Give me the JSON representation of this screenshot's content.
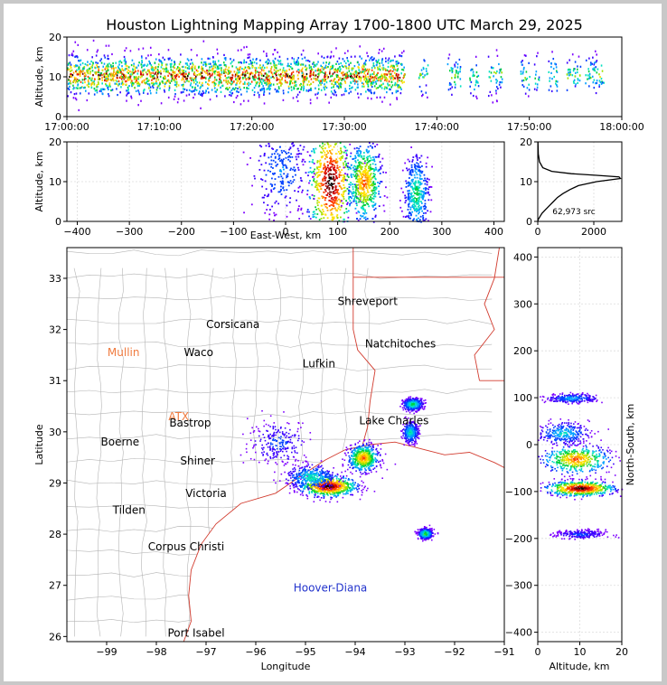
{
  "title": "Houston Lightning Mapping Array 1700-1800 UTC March 29, 2025",
  "colors": {
    "border_state": "#d23c2f",
    "county": "#b4b4b4",
    "coast": "#d23c2f",
    "hot_low": "#7d00ff",
    "hot_high": "#000000"
  },
  "chart_data": [
    {
      "id": "time_height",
      "type": "heatmap",
      "ylabel": "Altitude, km",
      "ylim": [
        0,
        20
      ],
      "yticks": [
        "0",
        "10",
        "20"
      ],
      "xticks": [
        "17:00:00",
        "17:10:00",
        "17:20:00",
        "17:30:00",
        "17:40:00",
        "17:50:00",
        "18:00:00"
      ],
      "xlim_minutes": [
        0,
        60
      ],
      "activity_blocks_minutes": [
        [
          0,
          36.5
        ],
        [
          38,
          39
        ],
        [
          41,
          42.5
        ],
        [
          43.5,
          44.5
        ],
        [
          45.5,
          47
        ],
        [
          49,
          50
        ],
        [
          50.5,
          51
        ],
        [
          52,
          53
        ],
        [
          54,
          55.5
        ],
        [
          56,
          58
        ]
      ],
      "core_altitude_km": 10.5
    },
    {
      "id": "east_west",
      "type": "heatmap",
      "xlabel": "East-West, km",
      "ylabel": "Altitude, km",
      "xlim": [
        -420,
        420
      ],
      "ylim": [
        0,
        20
      ],
      "xticks": [
        "−400",
        "−300",
        "−200",
        "−100",
        "0",
        "100",
        "200",
        "300",
        "400"
      ],
      "yticks": [
        "0",
        "10",
        "20"
      ],
      "clusters": [
        {
          "x": 85,
          "z": 10,
          "sx": 22,
          "sz": 8,
          "peak": 1.0
        },
        {
          "x": 150,
          "z": 10,
          "sx": 16,
          "sz": 5,
          "peak": 0.75
        },
        {
          "x": 250,
          "z": 7,
          "sx": 12,
          "sz": 5,
          "peak": 0.45
        },
        {
          "x": -10,
          "z": 13,
          "sx": 30,
          "sz": 6,
          "peak": 0.25
        }
      ]
    },
    {
      "id": "altitude_histogram",
      "type": "line",
      "xlim": [
        0,
        3000
      ],
      "ylim": [
        0,
        20
      ],
      "xticks": [
        "0",
        "2000"
      ],
      "yticks": [
        "0",
        "10",
        "20"
      ],
      "annotation": "62,973 src",
      "profile": [
        [
          0,
          0
        ],
        [
          20,
          0.5
        ],
        [
          60,
          1
        ],
        [
          150,
          2
        ],
        [
          280,
          3
        ],
        [
          420,
          4
        ],
        [
          560,
          5
        ],
        [
          700,
          6
        ],
        [
          900,
          7
        ],
        [
          1150,
          8
        ],
        [
          1450,
          9
        ],
        [
          2100,
          10
        ],
        [
          2950,
          10.8
        ],
        [
          2900,
          11.2
        ],
        [
          2100,
          11.6
        ],
        [
          1200,
          12
        ],
        [
          500,
          12.6
        ],
        [
          180,
          13.5
        ],
        [
          60,
          15
        ],
        [
          20,
          17
        ],
        [
          5,
          20
        ]
      ]
    },
    {
      "id": "plan_view",
      "type": "heatmap",
      "xlabel": "Longitude",
      "ylabel": "Latitude",
      "xlim": [
        -99.8,
        -91
      ],
      "ylim": [
        25.9,
        33.6
      ],
      "xticks": [
        "−99",
        "−98",
        "−97",
        "−96",
        "−95",
        "−94",
        "−93",
        "−92",
        "−91"
      ],
      "yticks": [
        "26",
        "27",
        "28",
        "29",
        "30",
        "31",
        "32",
        "33"
      ],
      "cities": [
        {
          "name": "Shreveport",
          "lon": -93.75,
          "lat": 32.55,
          "color": "#000000"
        },
        {
          "name": "Corsicana",
          "lon": -96.46,
          "lat": 32.1,
          "color": "#000000"
        },
        {
          "name": "Natchitoches",
          "lon": -93.09,
          "lat": 31.72,
          "color": "#000000"
        },
        {
          "name": "Mullin",
          "lon": -98.66,
          "lat": 31.55,
          "color": "#f07b3f"
        },
        {
          "name": "Waco",
          "lon": -97.15,
          "lat": 31.55,
          "color": "#000000"
        },
        {
          "name": "Lufkin",
          "lon": -94.73,
          "lat": 31.33,
          "color": "#000000"
        },
        {
          "name": "ATX",
          "lon": -97.55,
          "lat": 30.3,
          "color": "#f07b3f"
        },
        {
          "name": "Bastrop",
          "lon": -97.32,
          "lat": 30.17,
          "color": "#000000"
        },
        {
          "name": "Lake Charles",
          "lon": -93.22,
          "lat": 30.22,
          "color": "#000000"
        },
        {
          "name": "Boerne",
          "lon": -98.73,
          "lat": 29.8,
          "color": "#000000"
        },
        {
          "name": "Shiner",
          "lon": -97.17,
          "lat": 29.43,
          "color": "#000000"
        },
        {
          "name": "Victoria",
          "lon": -97.0,
          "lat": 28.8,
          "color": "#000000"
        },
        {
          "name": "Tilden",
          "lon": -98.55,
          "lat": 28.47,
          "color": "#000000"
        },
        {
          "name": "Corpus Christi",
          "lon": -97.4,
          "lat": 27.75,
          "color": "#000000"
        },
        {
          "name": "Hoover-Diana",
          "lon": -94.5,
          "lat": 26.95,
          "color": "#2233cc"
        },
        {
          "name": "Port Isabel",
          "lon": -97.2,
          "lat": 26.07,
          "color": "#000000"
        }
      ],
      "clusters": [
        {
          "lon": -94.55,
          "lat": 28.95,
          "sx": 0.28,
          "sy": 0.1,
          "peak": 1.0
        },
        {
          "lon": -94.9,
          "lat": 29.12,
          "sx": 0.25,
          "sy": 0.12,
          "peak": 0.4
        },
        {
          "lon": -93.85,
          "lat": 29.5,
          "sx": 0.15,
          "sy": 0.13,
          "peak": 0.75
        },
        {
          "lon": -92.85,
          "lat": 30.55,
          "sx": 0.1,
          "sy": 0.06,
          "peak": 0.45
        },
        {
          "lon": -92.9,
          "lat": 30.0,
          "sx": 0.08,
          "sy": 0.1,
          "peak": 0.4
        },
        {
          "lon": -95.55,
          "lat": 29.8,
          "sx": 0.3,
          "sy": 0.22,
          "peak": 0.2
        },
        {
          "lon": -92.6,
          "lat": 28.02,
          "sx": 0.07,
          "sy": 0.05,
          "peak": 0.5
        }
      ]
    },
    {
      "id": "north_south",
      "type": "heatmap",
      "xlabel": "Altitude, km",
      "ylabel": "North-South, km",
      "xlim": [
        0,
        20
      ],
      "ylim": [
        -420,
        420
      ],
      "xticks": [
        "0",
        "10",
        "20"
      ],
      "yticks": [
        "−400",
        "−300",
        "−200",
        "−100",
        "0",
        "100",
        "200",
        "300",
        "400"
      ],
      "clusters": [
        {
          "z": 10,
          "y": -92,
          "sx": 4,
          "sy": 8,
          "peak": 1.0
        },
        {
          "z": 9,
          "y": -30,
          "sx": 4,
          "sy": 15,
          "peak": 0.75
        },
        {
          "z": 6,
          "y": 25,
          "sx": 3,
          "sy": 12,
          "peak": 0.35
        },
        {
          "z": 8,
          "y": 100,
          "sx": 3,
          "sy": 5,
          "peak": 0.3
        },
        {
          "z": 10,
          "y": -190,
          "sx": 3,
          "sy": 5,
          "peak": 0.2
        }
      ]
    }
  ]
}
